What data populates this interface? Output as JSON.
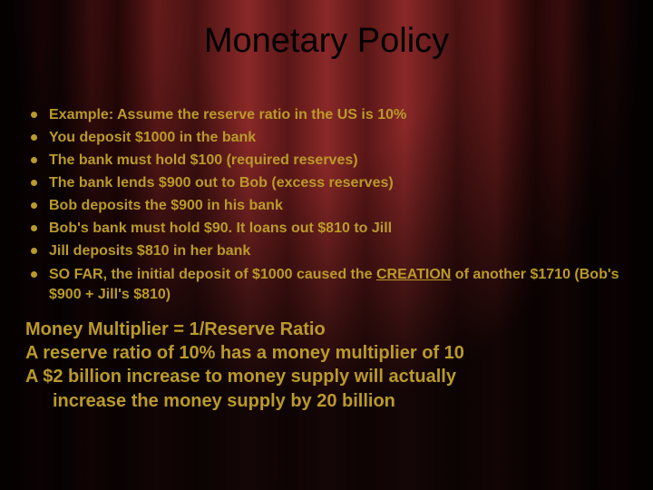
{
  "slide": {
    "background": {
      "base_color": "#000000",
      "curtain_colors": [
        "#1a0404",
        "#2a0808",
        "#4a0f0f",
        "#6a1818",
        "#7a2020",
        "#8a2828",
        "#5a1616"
      ],
      "vignette": "radial dark ellipse top-center"
    },
    "title": {
      "text": "Monetary Policy",
      "color": "#000000",
      "fontsize": 38,
      "font_family": "Verdana",
      "weight": "normal",
      "align": "center"
    },
    "bullets": {
      "color": "#ba9a29",
      "bullet_glyph_color": "#ba9a29",
      "fontsize": 16,
      "weight": "bold",
      "items": [
        "Example: Assume the reserve ratio in the US is 10%",
        "You deposit $1000 in the bank",
        "The bank must hold $100 (required reserves)",
        "The bank lends $900 out to Bob (excess reserves)",
        "Bob deposits the $900 in his bank",
        "Bob's bank must hold $90. It loans out $810 to Jill",
        "Jill deposits $810 in her bank"
      ],
      "last_item": {
        "prefix": "SO FAR, the initial deposit of $1000 caused the ",
        "underlined": "CREATION",
        "suffix": " of another $1710 (Bob's $900 + Jill's $810)"
      }
    },
    "body": {
      "color": "#ba9a29",
      "fontsize": 20,
      "weight": "bold",
      "lines": [
        "Money Multiplier = 1/Reserve Ratio",
        "A reserve ratio of 10% has a money multiplier of 10",
        "A $2 billion increase to money supply will actually"
      ],
      "indent_line": "increase the money supply by 20 billion"
    }
  }
}
